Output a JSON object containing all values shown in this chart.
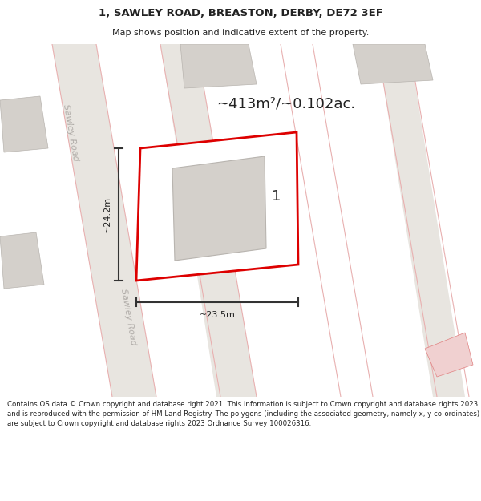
{
  "title_line1": "1, SAWLEY ROAD, BREASTON, DERBY, DE72 3EF",
  "title_line2": "Map shows position and indicative extent of the property.",
  "area_text": "~413m²/~0.102ac.",
  "property_number": "1",
  "dim_width": "~23.5m",
  "dim_height": "~24.2m",
  "road_label1": "Sawley Road",
  "road_label2": "Sawley Road",
  "footer_text": "Contains OS data © Crown copyright and database right 2021. This information is subject to Crown copyright and database rights 2023 and is reproduced with the permission of HM Land Registry. The polygons (including the associated geometry, namely x, y co-ordinates) are subject to Crown copyright and database rights 2023 Ordnance Survey 100026316.",
  "map_bg": "#ffffff",
  "road_fill": "#e8e5e0",
  "property_outline": "#dd0000",
  "building_fill": "#d4d0cb",
  "building_outline": "#b8b4af",
  "road_line_color": "#e8b0b0",
  "footer_bg": "#f2f0ec",
  "text_color": "#222222",
  "road_text_color": "#b0aca8",
  "dim_line_color": "#333333",
  "title_fontsize": 9.5,
  "subtitle_fontsize": 8,
  "area_fontsize": 13,
  "label_fontsize": 8,
  "dim_fontsize": 8,
  "footer_fontsize": 6.2,
  "prop_num_fontsize": 13
}
